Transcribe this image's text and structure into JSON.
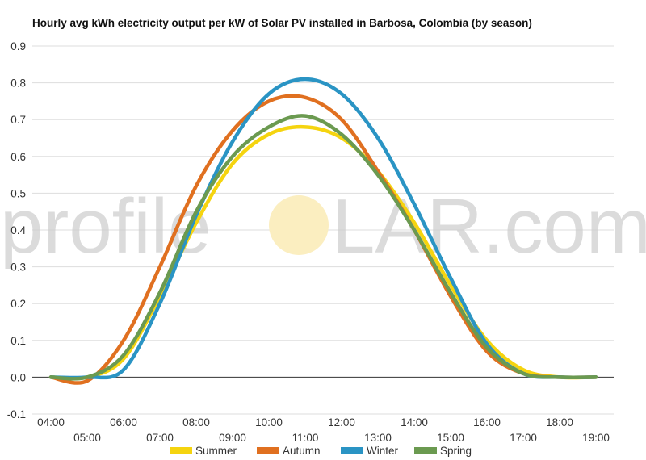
{
  "chart_data": {
    "type": "line",
    "title": "Hourly avg kWh electricity output per kW of Solar PV installed in Barbosa, Colombia (by season)",
    "xlabel": "",
    "ylabel": "",
    "x": [
      "04:00",
      "05:00",
      "06:00",
      "07:00",
      "08:00",
      "09:00",
      "10:00",
      "11:00",
      "12:00",
      "13:00",
      "14:00",
      "15:00",
      "16:00",
      "17:00",
      "18:00",
      "19:00"
    ],
    "ylim": [
      -0.1,
      0.9
    ],
    "yticks": [
      "-0.1",
      "0.0",
      "0.1",
      "0.2",
      "0.3",
      "0.4",
      "0.5",
      "0.6",
      "0.7",
      "0.8",
      "0.9"
    ],
    "grid": true,
    "legend": "bottom",
    "series": [
      {
        "name": "Summer",
        "color": "#f5d40f",
        "values": [
          0.0,
          0.0,
          0.05,
          0.22,
          0.42,
          0.58,
          0.66,
          0.68,
          0.65,
          0.56,
          0.42,
          0.25,
          0.1,
          0.02,
          0.0,
          0.0
        ]
      },
      {
        "name": "Autumn",
        "color": "#e07020",
        "values": [
          0.0,
          -0.01,
          0.1,
          0.3,
          0.52,
          0.67,
          0.75,
          0.76,
          0.7,
          0.56,
          0.4,
          0.22,
          0.07,
          0.01,
          0.0,
          0.0
        ]
      },
      {
        "name": "Winter",
        "color": "#2a94c4",
        "values": [
          0.0,
          0.0,
          0.02,
          0.2,
          0.44,
          0.64,
          0.77,
          0.81,
          0.77,
          0.65,
          0.47,
          0.27,
          0.09,
          0.01,
          0.0,
          0.0
        ]
      },
      {
        "name": "Spring",
        "color": "#6b9a50",
        "values": [
          0.0,
          0.0,
          0.06,
          0.23,
          0.45,
          0.6,
          0.68,
          0.71,
          0.66,
          0.55,
          0.4,
          0.23,
          0.08,
          0.01,
          0.0,
          0.0
        ]
      }
    ]
  },
  "watermark": {
    "left": "profile",
    "right": "LAR.com",
    "sun_color": "#fbeec0"
  }
}
